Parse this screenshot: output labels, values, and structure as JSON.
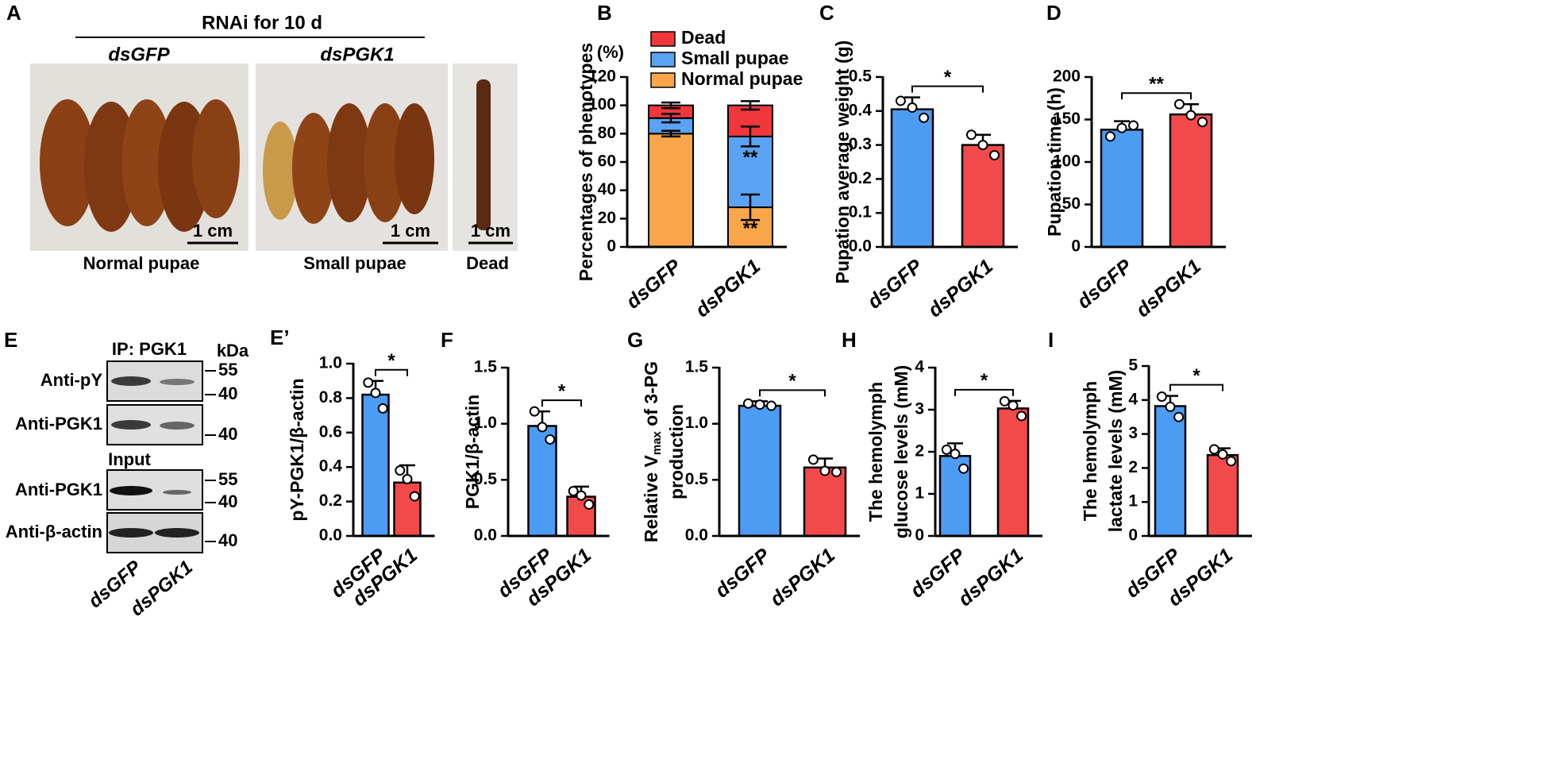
{
  "panel_a": {
    "label": "A",
    "header": "RNAi for 10 d",
    "groups": [
      "dsGFP",
      "dsPGK1"
    ],
    "scale_bars": [
      "1 cm",
      "1 cm",
      "1 cm"
    ],
    "captions": [
      "Normal pupae",
      "Small pupae",
      "Dead"
    ]
  },
  "panel_e": {
    "label": "E",
    "ip": "IP: PGK1",
    "input": "Input",
    "unit": "kDa",
    "rows": [
      "Anti-pY",
      "Anti-PGK1",
      "Anti-PGK1",
      "Anti-β-actin"
    ],
    "markers": [
      "55",
      "40",
      "40",
      "55",
      "40",
      "40"
    ],
    "lanes": [
      "dsGFP",
      "dsPGK1"
    ]
  },
  "chart_data": [
    {
      "type": "bar",
      "stacked": true,
      "label": "B",
      "ylabel": [
        "Percentages of phenotypes"
      ],
      "unit": "(%)",
      "categories": [
        "dsGFP",
        "dsPGK1"
      ],
      "series": [
        {
          "name": "Normal pupae",
          "color": "#f9a64b",
          "values": [
            80,
            28
          ],
          "errors": [
            2,
            9
          ],
          "significance": [
            null,
            "**"
          ]
        },
        {
          "name": "Small pupae",
          "color": "#5aa2f2",
          "values": [
            11,
            50
          ],
          "errors": [
            3,
            7
          ],
          "significance": [
            null,
            "**"
          ]
        },
        {
          "name": "Dead",
          "color": "#f0373c",
          "values": [
            9,
            22
          ],
          "errors": [
            2,
            3
          ]
        }
      ],
      "ylim": [
        0,
        120
      ],
      "yticks": [
        0,
        20,
        40,
        60,
        80,
        100,
        120
      ],
      "legend": "top-right"
    },
    {
      "type": "bar",
      "label": "C",
      "ylabel": [
        "Pupation average weight (g)"
      ],
      "categories": [
        "dsGFP",
        "dsPGK1"
      ],
      "colors": [
        "#4d9cf3",
        "#f24a4a"
      ],
      "values": [
        0.405,
        0.3
      ],
      "errors": [
        0.035,
        0.03
      ],
      "points": [
        [
          0.43,
          0.41,
          0.38
        ],
        [
          0.33,
          0.3,
          0.27
        ]
      ],
      "significance": "*",
      "ylim": [
        0,
        0.5
      ],
      "yticks": [
        {
          "value": 0,
          "label": "0.0"
        },
        0.1,
        0.2,
        0.3,
        0.4,
        0.5
      ]
    },
    {
      "type": "bar",
      "label": "D",
      "ylabel": [
        "Pupation time (h)"
      ],
      "categories": [
        "dsGFP",
        "dsPGK1"
      ],
      "colors": [
        "#4d9cf3",
        "#f24a4a"
      ],
      "values": [
        138,
        156
      ],
      "errors": [
        10,
        12
      ],
      "points": [
        [
          130,
          140,
          143
        ],
        [
          168,
          155,
          147
        ]
      ],
      "significance": "**",
      "ylim": [
        0,
        200
      ],
      "yticks": [
        0,
        50,
        100,
        150,
        200
      ]
    },
    {
      "type": "bar",
      "label": "E’",
      "ylabel": [
        "pY-PGK1/β-actin"
      ],
      "categories": [
        "dsGFP",
        "dsPGK1"
      ],
      "colors": [
        "#4d9cf3",
        "#f24a4a"
      ],
      "values": [
        0.82,
        0.31
      ],
      "errors": [
        0.08,
        0.1
      ],
      "points": [
        [
          0.89,
          0.83,
          0.74
        ],
        [
          0.38,
          0.33,
          0.23
        ]
      ],
      "significance": "*",
      "ylim": [
        0,
        1
      ],
      "yticks": [
        {
          "value": 0,
          "label": "0.0"
        },
        0.2,
        0.4,
        0.6,
        0.8,
        {
          "value": 1,
          "label": "1.0"
        }
      ]
    },
    {
      "type": "bar",
      "label": "F",
      "ylabel": [
        "PGK1/β-actin"
      ],
      "categories": [
        "dsGFP",
        "dsPGK1"
      ],
      "colors": [
        "#4d9cf3",
        "#f24a4a"
      ],
      "values": [
        0.98,
        0.35
      ],
      "errors": [
        0.13,
        0.09
      ],
      "points": [
        [
          1.11,
          0.97,
          0.86
        ],
        [
          0.4,
          0.36,
          0.28
        ]
      ],
      "significance": "*",
      "ylim": [
        0,
        1.5
      ],
      "yticks": [
        {
          "value": 0,
          "label": "0.0"
        },
        0.5,
        {
          "value": 1,
          "label": "1.0"
        },
        1.5
      ]
    },
    {
      "type": "bar",
      "label": "G",
      "ylabel": [
        {
          "text": "Relative V",
          "sub": "max",
          "tail": " of 3-PG"
        },
        "production"
      ],
      "categories": [
        "dsGFP",
        "dsPGK1"
      ],
      "colors": [
        "#4d9cf3",
        "#f24a4a"
      ],
      "values": [
        1.16,
        0.61
      ],
      "errors": [
        0.04,
        0.08
      ],
      "points": [
        [
          1.18,
          1.17,
          1.16
        ],
        [
          0.68,
          0.58,
          0.57
        ]
      ],
      "significance": "*",
      "ylim": [
        0,
        1.5
      ],
      "yticks": [
        {
          "value": 0,
          "label": "0.0"
        },
        0.5,
        {
          "value": 1,
          "label": "1.0"
        },
        1.5
      ]
    },
    {
      "type": "bar",
      "label": "H",
      "ylabel": [
        "The hemolymph",
        "glucose levels (mM)"
      ],
      "categories": [
        "dsGFP",
        "dsPGK1"
      ],
      "colors": [
        "#4d9cf3",
        "#f24a4a"
      ],
      "values": [
        1.9,
        3.03
      ],
      "errors": [
        0.3,
        0.18
      ],
      "points": [
        [
          2.05,
          1.95,
          1.6
        ],
        [
          3.2,
          3.1,
          2.85
        ]
      ],
      "significance": "*",
      "ylim": [
        0,
        4
      ],
      "yticks": [
        0,
        1,
        2,
        3,
        4
      ]
    },
    {
      "type": "bar",
      "label": "I",
      "ylabel": [
        "The hemolymph",
        "lactate levels (mM)"
      ],
      "categories": [
        "dsGFP",
        "dsPGK1"
      ],
      "colors": [
        "#4d9cf3",
        "#f24a4a"
      ],
      "values": [
        3.82,
        2.38
      ],
      "errors": [
        0.3,
        0.2
      ],
      "points": [
        [
          4.1,
          3.8,
          3.5
        ],
        [
          2.55,
          2.4,
          2.2
        ]
      ],
      "significance": "*",
      "ylim": [
        0,
        5
      ],
      "yticks": [
        0,
        1,
        2,
        3,
        4,
        5
      ]
    }
  ]
}
